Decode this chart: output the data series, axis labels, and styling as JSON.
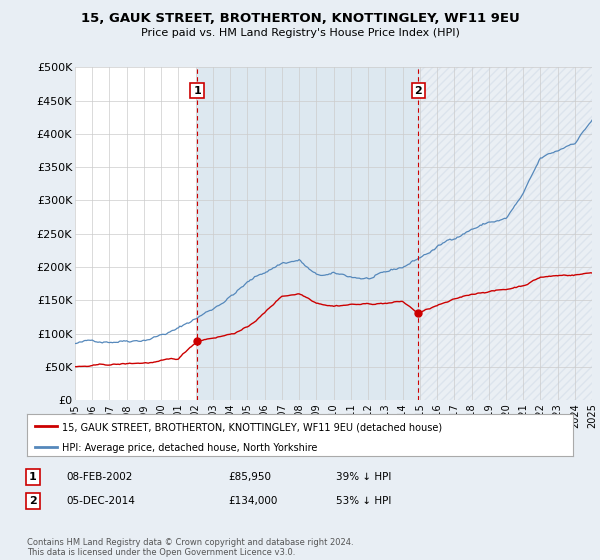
{
  "title": "15, GAUK STREET, BROTHERTON, KNOTTINGLEY, WF11 9EU",
  "subtitle": "Price paid vs. HM Land Registry's House Price Index (HPI)",
  "ylim": [
    0,
    500000
  ],
  "yticks": [
    0,
    50000,
    100000,
    150000,
    200000,
    250000,
    300000,
    350000,
    400000,
    450000,
    500000
  ],
  "background_color": "#e8eef4",
  "plot_bg_color": "#ffffff",
  "grid_color": "#cccccc",
  "hpi_color": "#5588bb",
  "price_color": "#cc0000",
  "annotation_color": "#cc0000",
  "shade_color": "#dde8f0",
  "hatch_color": "#cccccc",
  "marker1_month_idx": 85,
  "marker1_label": "1",
  "marker1_value": 85950,
  "marker1_date_str": "08-FEB-2002",
  "marker1_price_str": "£85,950",
  "marker1_hpi_str": "39% ↓ HPI",
  "marker2_month_idx": 239,
  "marker2_label": "2",
  "marker2_value": 134000,
  "marker2_date_str": "05-DEC-2014",
  "marker2_price_str": "£134,000",
  "marker2_hpi_str": "53% ↓ HPI",
  "legend_label_price": "15, GAUK STREET, BROTHERTON, KNOTTINGLEY, WF11 9EU (detached house)",
  "legend_label_hpi": "HPI: Average price, detached house, North Yorkshire",
  "footer": "Contains HM Land Registry data © Crown copyright and database right 2024.\nThis data is licensed under the Open Government Licence v3.0.",
  "x_tick_years": [
    "1995",
    "1996",
    "1997",
    "1998",
    "1999",
    "2000",
    "2001",
    "2002",
    "2003",
    "2004",
    "2005",
    "2006",
    "2007",
    "2008",
    "2009",
    "2010",
    "2011",
    "2012",
    "2013",
    "2014",
    "2015",
    "2016",
    "2017",
    "2018",
    "2019",
    "2020",
    "2021",
    "2022",
    "2023",
    "2024",
    "2025"
  ],
  "start_year": 1995,
  "end_year": 2025,
  "total_months": 361
}
